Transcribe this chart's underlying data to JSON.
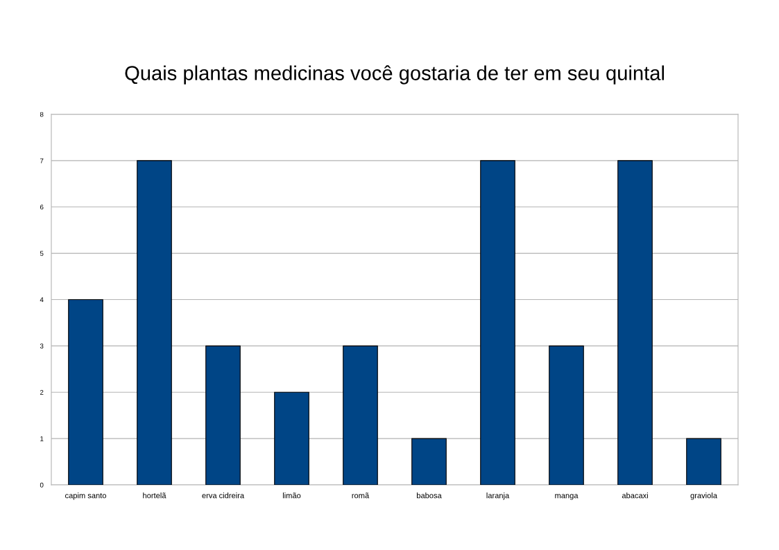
{
  "chart_data": {
    "type": "bar",
    "title": "Quais plantas medicinas você gostaria de ter em seu quintal",
    "categories": [
      "capim santo",
      "hortelã",
      "erva cidreira",
      "limão",
      "romã",
      "babosa",
      "laranja",
      "manga",
      "abacaxi",
      "graviola"
    ],
    "values": [
      4,
      7,
      3,
      2,
      3,
      1,
      7,
      3,
      7,
      1
    ],
    "color": "#004586",
    "ylim": [
      0,
      8
    ],
    "yticks": [
      0,
      1,
      2,
      3,
      4,
      5,
      6,
      7,
      8
    ],
    "grid": "y",
    "legend": false
  }
}
